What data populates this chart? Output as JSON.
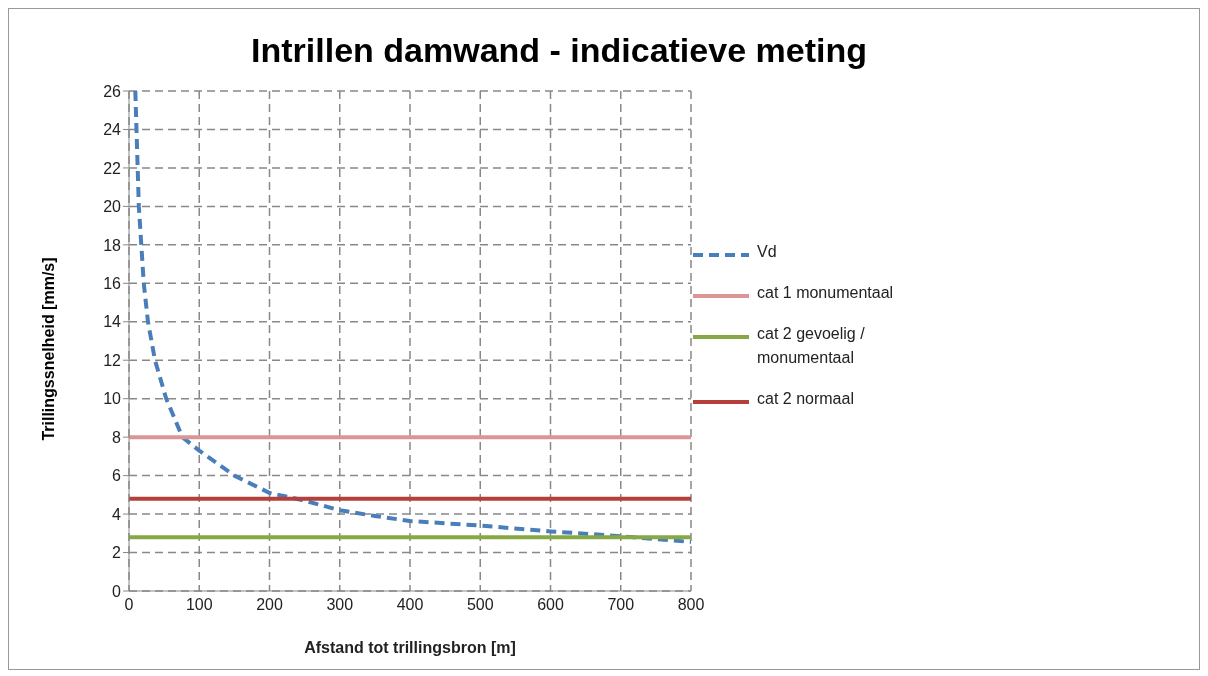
{
  "chart_data": {
    "type": "line",
    "title": "Intrillen damwand - indicatieve meting",
    "xlabel": "Afstand tot trillingsbron  [m]",
    "ylabel": "Trillingssnelheid  [mm/s]",
    "xlim": [
      0,
      800
    ],
    "xticks": [
      0,
      100,
      200,
      300,
      400,
      500,
      600,
      700,
      800
    ],
    "ylim": [
      0,
      26
    ],
    "yticks": [
      0,
      2,
      4,
      6,
      8,
      10,
      12,
      14,
      16,
      18,
      20,
      22,
      24,
      26
    ],
    "grid": true,
    "legend": "right",
    "marker": "none",
    "series": [
      {
        "name": "Vd",
        "color": "#4a7ebb",
        "line_style": "dashed",
        "x": [
          9,
          14,
          21,
          27,
          37,
          53,
          76,
          100,
          150,
          200,
          250,
          300,
          350,
          400,
          500,
          600,
          700,
          800
        ],
        "values": [
          26,
          20,
          16,
          14,
          12,
          10,
          8,
          7.3,
          6,
          5.1,
          4.7,
          4.2,
          3.9,
          3.64,
          3.4,
          3.1,
          2.85,
          2.55
        ]
      },
      {
        "name": "cat 2 normaal",
        "color": "#b3403a",
        "line_style": "solid",
        "x": [
          0,
          800
        ],
        "values": [
          4.8,
          4.8
        ]
      },
      {
        "name": "cat 2 gevoelig / monumentaal",
        "color": "#86a845",
        "line_style": "solid",
        "x": [
          0,
          800
        ],
        "values": [
          2.8,
          2.8
        ]
      },
      {
        "name": "cat 1 monumentaal",
        "color": "#d99694",
        "line_style": "solid",
        "x": [
          0,
          800
        ],
        "values": [
          8,
          8
        ]
      }
    ]
  }
}
